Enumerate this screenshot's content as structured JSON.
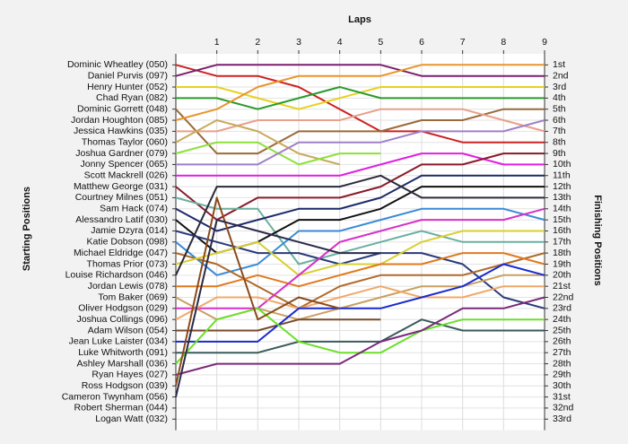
{
  "chart_data": {
    "type": "line",
    "title": "Laps",
    "y_label_left": "Starting Positions",
    "y_label_right": "Finishing Positions",
    "x": [
      0,
      1,
      2,
      3,
      4,
      5,
      6,
      7,
      8,
      9
    ],
    "xlim": [
      0,
      9
    ],
    "xticks": [
      1,
      2,
      3,
      4,
      5,
      6,
      7,
      8,
      9
    ],
    "ylim": [
      0,
      34
    ],
    "y_inverted": true,
    "grid": true,
    "yticks": [
      {
        "value": 1,
        "label": "1st"
      },
      {
        "value": 2,
        "label": "2nd"
      },
      {
        "value": 3,
        "label": "3rd"
      },
      {
        "value": 4,
        "label": "4th"
      },
      {
        "value": 5,
        "label": "5th"
      },
      {
        "value": 6,
        "label": "6th"
      },
      {
        "value": 7,
        "label": "7th"
      },
      {
        "value": 8,
        "label": "8th"
      },
      {
        "value": 9,
        "label": "9th"
      },
      {
        "value": 10,
        "label": "10th"
      },
      {
        "value": 11,
        "label": "11th"
      },
      {
        "value": 12,
        "label": "12th"
      },
      {
        "value": 13,
        "label": "13th"
      },
      {
        "value": 14,
        "label": "14th"
      },
      {
        "value": 15,
        "label": "15th"
      },
      {
        "value": 16,
        "label": "16th"
      },
      {
        "value": 17,
        "label": "17th"
      },
      {
        "value": 18,
        "label": "18th"
      },
      {
        "value": 19,
        "label": "19th"
      },
      {
        "value": 20,
        "label": "20th"
      },
      {
        "value": 21,
        "label": "21st"
      },
      {
        "value": 22,
        "label": "22nd"
      },
      {
        "value": 23,
        "label": "23rd"
      },
      {
        "value": 24,
        "label": "24th"
      },
      {
        "value": 25,
        "label": "25th"
      },
      {
        "value": 26,
        "label": "26th"
      },
      {
        "value": 27,
        "label": "27th"
      },
      {
        "value": 28,
        "label": "28th"
      },
      {
        "value": 29,
        "label": "29th"
      },
      {
        "value": 30,
        "label": "30th"
      },
      {
        "value": 31,
        "label": "31st"
      },
      {
        "value": 32,
        "label": "32nd"
      },
      {
        "value": 33,
        "label": "33rd"
      }
    ],
    "series": [
      {
        "name": "Dominic Wheatley (050)",
        "color": "#cc2222",
        "values": [
          1,
          2,
          2,
          3,
          5,
          7,
          7,
          8,
          8,
          8
        ]
      },
      {
        "name": "Daniel Purvis (097)",
        "color": "#7a1f6e",
        "values": [
          2,
          1,
          1,
          1,
          1,
          1,
          2,
          2,
          2,
          2
        ]
      },
      {
        "name": "Henry Hunter (052)",
        "color": "#e6d21e",
        "values": [
          3,
          3,
          4,
          5,
          4,
          3,
          3,
          3,
          3,
          3
        ]
      },
      {
        "name": "Chad Ryan (082)",
        "color": "#2a9a2a",
        "values": [
          4,
          4,
          5,
          4,
          3,
          4,
          4,
          4,
          4,
          4
        ]
      },
      {
        "name": "Dominic Gorrett (048)",
        "color": "#9a6a3a",
        "values": [
          5,
          9,
          9,
          7,
          7,
          7,
          6,
          6,
          5,
          5
        ]
      },
      {
        "name": "Jordan Houghton (085)",
        "color": "#e8952a",
        "values": [
          6,
          5,
          3,
          2,
          2,
          2,
          1,
          1,
          1,
          1
        ]
      },
      {
        "name": "Jessica Hawkins (035)",
        "color": "#e8a08a",
        "values": [
          7,
          7,
          6,
          6,
          6,
          5,
          5,
          5,
          6,
          7
        ]
      },
      {
        "name": "Thomas Taylor (060)",
        "color": "#c8aa5a",
        "values": [
          8,
          6,
          7,
          9,
          10,
          null,
          null,
          null,
          null,
          null
        ]
      },
      {
        "name": "Joshua Gardner (079)",
        "color": "#8ee03a",
        "values": [
          9,
          8,
          8,
          10,
          9,
          9,
          null,
          null,
          null,
          null
        ]
      },
      {
        "name": "Jonny Spencer (065)",
        "color": "#a080c8",
        "values": [
          10,
          10,
          10,
          8,
          8,
          8,
          7,
          7,
          7,
          6
        ]
      },
      {
        "name": "Scott Mackrell (026)",
        "color": "#e020e0",
        "values": [
          11,
          11,
          11,
          11,
          11,
          10,
          9,
          9,
          10,
          10
        ]
      },
      {
        "name": "Matthew George (031)",
        "color": "#8a1a2a",
        "values": [
          12,
          15,
          13,
          13,
          13,
          12,
          10,
          10,
          9,
          9
        ]
      },
      {
        "name": "Courtney Milnes (051)",
        "color": "#6ab0a0",
        "values": [
          13,
          14,
          14,
          19,
          18,
          17,
          16,
          17,
          17,
          17
        ]
      },
      {
        "name": "Sam Hack (074)",
        "color": "#1e2a6a",
        "values": [
          14,
          16,
          15,
          14,
          14,
          13,
          11,
          11,
          11,
          11
        ]
      },
      {
        "name": "Alessandro Latif (030)",
        "color": "#111111",
        "values": [
          15,
          18,
          17,
          15,
          15,
          14,
          12,
          12,
          12,
          12
        ]
      },
      {
        "name": "Jamie Dzyra (014)",
        "color": "#2a3a7a",
        "values": [
          16,
          17,
          18,
          18,
          19,
          18,
          18,
          19,
          22,
          23
        ]
      },
      {
        "name": "Katie Dobson (098)",
        "color": "#3a8ad8",
        "values": [
          17,
          20,
          19,
          16,
          16,
          15,
          14,
          14,
          14,
          15
        ]
      },
      {
        "name": "Michael Eldridge (047)",
        "color": "#b06a2a",
        "values": [
          18,
          19,
          21,
          23,
          21,
          20,
          20,
          20,
          19,
          18
        ]
      },
      {
        "name": "Thomas Prior (073)",
        "color": "#d8d030",
        "values": [
          19,
          18,
          17,
          20,
          19,
          19,
          17,
          16,
          16,
          16
        ]
      },
      {
        "name": "Louise Richardson (046)",
        "color": "#2a2a3a",
        "values": [
          20,
          12,
          12,
          12,
          12,
          11,
          13,
          13,
          13,
          13
        ]
      },
      {
        "name": "Jordan Lewis (078)",
        "color": "#e07a20",
        "values": [
          21,
          21,
          20,
          21,
          20,
          19,
          19,
          18,
          18,
          19
        ]
      },
      {
        "name": "Tom Baker (069)",
        "color": "#c8a060",
        "values": [
          22,
          24,
          23,
          24,
          23,
          22,
          21,
          21,
          20,
          20
        ]
      },
      {
        "name": "Oliver Hodgson (029)",
        "color": "#d830c8",
        "values": [
          23,
          23,
          23,
          20,
          17,
          16,
          15,
          15,
          15,
          14
        ]
      },
      {
        "name": "Joshua Collings (096)",
        "color": "#f0a868",
        "values": [
          24,
          22,
          22,
          23,
          22,
          21,
          22,
          22,
          21,
          21
        ]
      },
      {
        "name": "Adam Wilson (054)",
        "color": "#7a4a2a",
        "values": [
          25,
          25,
          25,
          24,
          24,
          24,
          null,
          null,
          null,
          null
        ]
      },
      {
        "name": "Jean Luke Laister (034)",
        "color": "#1a2ad0",
        "values": [
          26,
          26,
          26,
          23,
          23,
          23,
          22,
          21,
          19,
          20
        ]
      },
      {
        "name": "Luke Whitworth (091)",
        "color": "#3a5a5a",
        "values": [
          27,
          27,
          27,
          26,
          26,
          26,
          24,
          25,
          25,
          25
        ]
      },
      {
        "name": "Ashley Marshall (036)",
        "color": "#6ae02a",
        "values": [
          28,
          24,
          23,
          26,
          27,
          27,
          25,
          24,
          24,
          24
        ]
      },
      {
        "name": "Ryan Hayes (027)",
        "color": "#7a2a7a",
        "values": [
          29,
          28,
          28,
          28,
          28,
          26,
          25,
          23,
          23,
          22
        ]
      },
      {
        "name": "Ross Hodgson (039)",
        "color": "#8a4a1a",
        "values": [
          30,
          13,
          24,
          22,
          23,
          null,
          null,
          null,
          null,
          null
        ]
      },
      {
        "name": "Cameron Twynham (056)",
        "color": "#2a2a4a",
        "values": [
          31,
          15,
          16,
          17,
          18,
          18,
          null,
          null,
          null,
          null
        ]
      },
      {
        "name": "Robert Sherman (044)",
        "color": "#555555",
        "values": [
          32,
          null,
          null,
          null,
          null,
          null,
          null,
          null,
          null,
          null
        ]
      },
      {
        "name": "Logan Watt (032)",
        "color": "#555555",
        "values": [
          33,
          null,
          null,
          null,
          null,
          null,
          null,
          null,
          null,
          null
        ]
      }
    ]
  }
}
